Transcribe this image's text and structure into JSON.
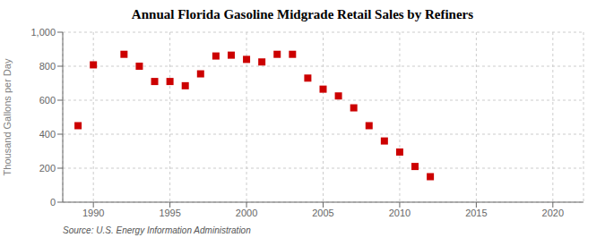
{
  "chart_data": {
    "type": "scatter",
    "title": "Annual Florida Gasoline Midgrade Retail Sales by Refiners",
    "ylabel": "Thousand Gallons per Day",
    "annotations": [
      "Source: U.S. Energy Information Administration"
    ],
    "x": [
      1989,
      1990,
      1992,
      1993,
      1994,
      1995,
      1996,
      1997,
      1998,
      1999,
      2000,
      2001,
      2002,
      2003,
      2004,
      2005,
      2006,
      2007,
      2008,
      2009,
      2010,
      2011,
      2012
    ],
    "values": [
      450,
      808,
      870,
      800,
      710,
      710,
      685,
      755,
      860,
      865,
      840,
      825,
      870,
      870,
      730,
      665,
      625,
      555,
      450,
      360,
      295,
      210,
      150
    ],
    "xlim": [
      1988,
      2022
    ],
    "ylim": [
      0,
      1000
    ],
    "xticks": [
      1990,
      1995,
      2000,
      2005,
      2010,
      2015,
      2020
    ],
    "yticks": [
      0,
      200,
      400,
      600,
      800,
      {
        "value": 1000,
        "label": "1,000"
      }
    ],
    "color": "#cc0000",
    "marker": "square",
    "grid": true
  }
}
